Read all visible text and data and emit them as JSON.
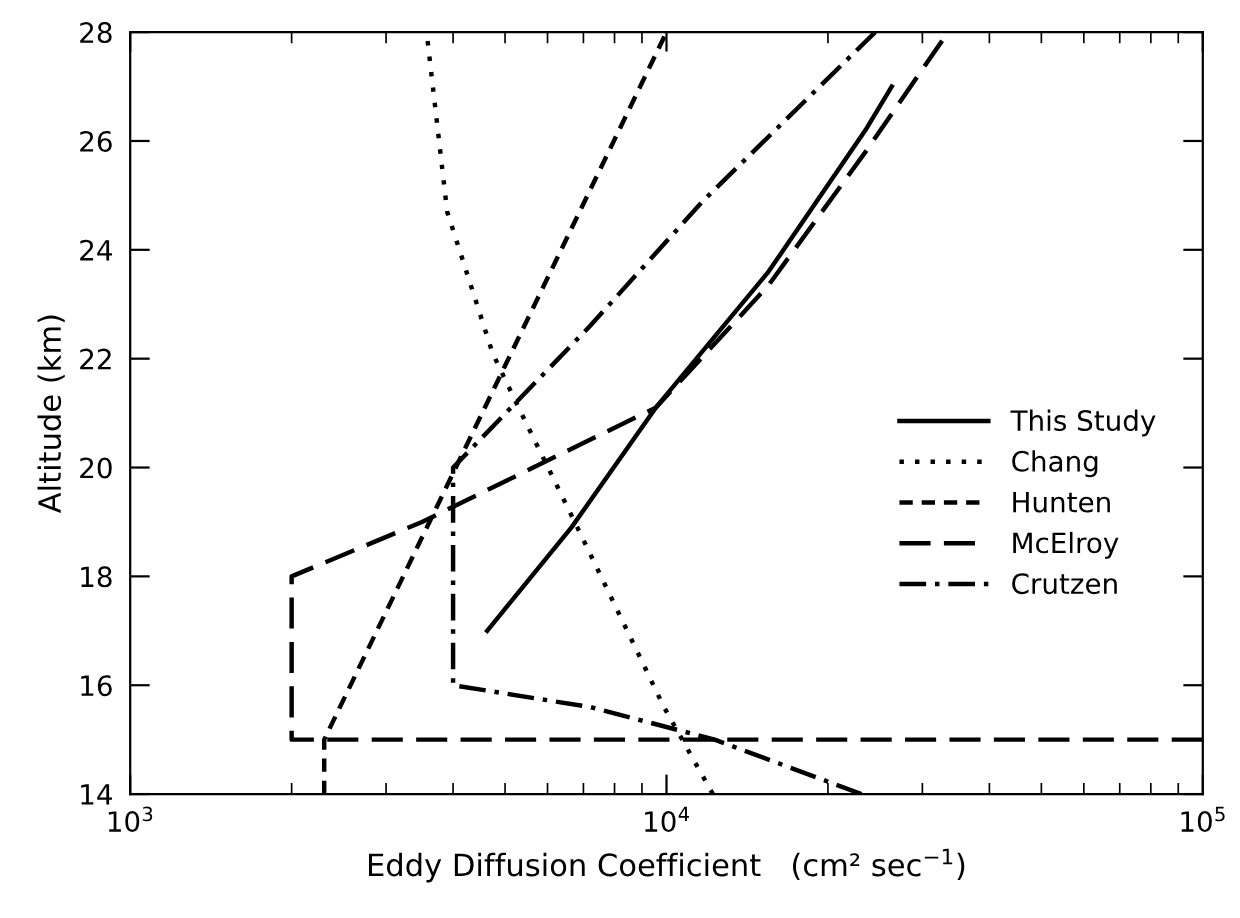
{
  "chart_data": {
    "type": "line",
    "xlabel": "Eddy Diffusion Coefficient   (cm² sec$^{−1}$)",
    "ylabel": "Altitude (km)",
    "log": "x",
    "xlim": [
      1000,
      100000
    ],
    "ylim": [
      14,
      28
    ],
    "xticks": [
      {
        "value": 1000,
        "label": "10$^{3}$"
      },
      {
        "value": 10000,
        "label": "10$^{4}$"
      },
      {
        "value": 100000,
        "label": "10$^{5}$"
      }
    ],
    "yticks": [
      14,
      16,
      18,
      20,
      22,
      24,
      26,
      28
    ],
    "grid": false,
    "legend": "right",
    "marker": "none",
    "series": [
      {
        "name": "This Study",
        "color": "#000000",
        "line_style": "solid",
        "x": [
          4630,
          6650,
          9550,
          15500,
          23500,
          26300
        ],
        "values": [
          17,
          18.9,
          21.1,
          23.6,
          26.2,
          27
        ]
      },
      {
        "name": "Chang",
        "color": "#000000",
        "line_style": "dotted",
        "x": [
          12200,
          9890,
          6820,
          5300,
          4740,
          3900,
          3570
        ],
        "values": [
          14,
          15.6,
          18.9,
          21.1,
          22.1,
          24.7,
          28
        ]
      },
      {
        "name": "Hunten",
        "color": "#000000",
        "line_style": "dashed",
        "x": [
          2300,
          2300,
          10000
        ],
        "values": [
          14,
          15,
          28
        ]
      },
      {
        "name": "McElroy",
        "color": "#000000",
        "line_style": "longdash",
        "x": [
          100000,
          2000,
          2000,
          3500,
          9550,
          15500,
          23500,
          33500
        ],
        "values": [
          15,
          15,
          18,
          19,
          21.1,
          23.35,
          25.8,
          28
        ]
      },
      {
        "name": "Crutzen",
        "color": "#000000",
        "line_style": "dashdot",
        "x": [
          23100,
          12300,
          7200,
          4000,
          4000,
          7200,
          11700,
          24500
        ],
        "values": [
          14,
          15,
          15.6,
          16,
          20,
          22.6,
          24.9,
          28
        ]
      }
    ]
  }
}
